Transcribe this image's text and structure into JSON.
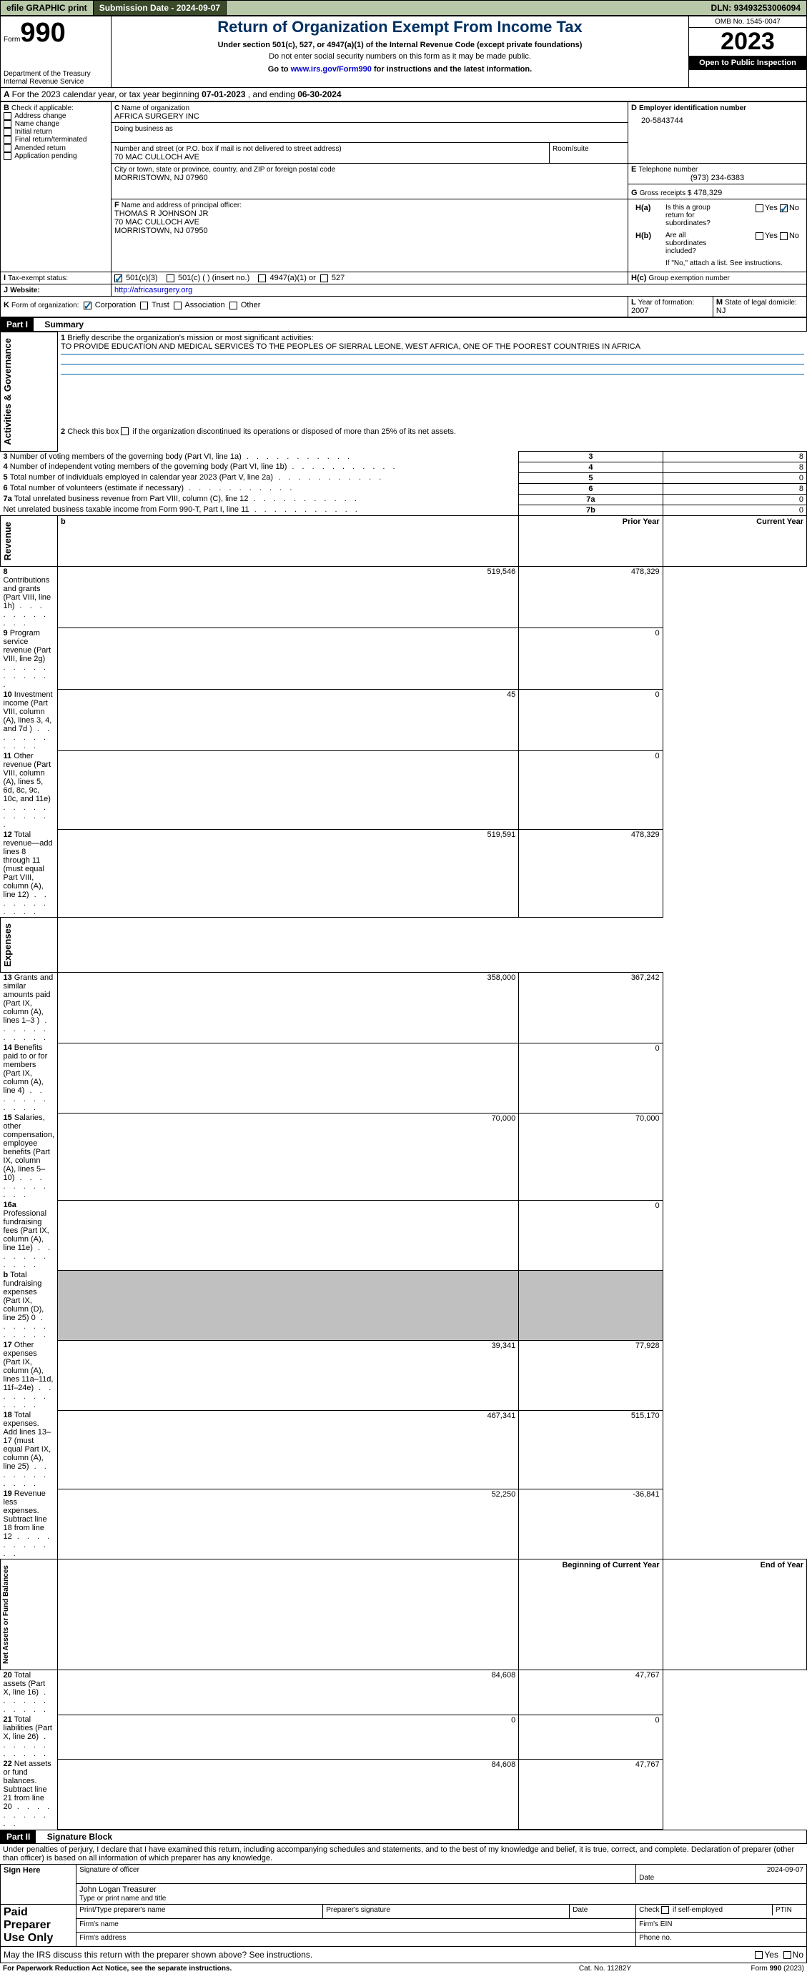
{
  "topbar": {
    "efile": "efile GRAPHIC print",
    "subdate_label": "Submission Date -",
    "subdate": "2024-09-07",
    "dln_label": "DLN:",
    "dln": "93493253006094"
  },
  "header": {
    "form_label": "Form",
    "form_no": "990",
    "title": "Return of Organization Exempt From Income Tax",
    "subtitle": "Under section 501(c), 527, or 4947(a)(1) of the Internal Revenue Code (except private foundations)",
    "ssn_note": "Do not enter social security numbers on this form as it may be made public.",
    "goto_prefix": "Go to ",
    "goto_url": "www.irs.gov/Form990",
    "goto_suffix": " for instructions and the latest information.",
    "dept": "Department of the Treasury",
    "irs": "Internal Revenue Service",
    "omb_label": "OMB No.",
    "omb": "1545-0047",
    "year": "2023",
    "open": "Open to Public Inspection"
  },
  "A": {
    "text_prefix": "For the 2023 calendar year, or tax year beginning ",
    "begin": "07-01-2023",
    "mid": ", and ending ",
    "end": "06-30-2024"
  },
  "B": {
    "label": "Check if applicable:",
    "opts": [
      "Address change",
      "Name change",
      "Initial return",
      "Final return/terminated",
      "Amended return",
      "Application pending"
    ]
  },
  "C": {
    "name_label": "Name of organization",
    "name": "AFRICA SURGERY INC",
    "dba_label": "Doing business as",
    "street_label": "Number and street (or P.O. box if mail is not delivered to street address)",
    "room_label": "Room/suite",
    "street": "70 MAC CULLOCH AVE",
    "city_label": "City or town, state or province, country, and ZIP or foreign postal code",
    "city": "MORRISTOWN, NJ  07960"
  },
  "D": {
    "label": "Employer identification number",
    "val": "20-5843744"
  },
  "E": {
    "label": "Telephone number",
    "val": "(973) 234-6383"
  },
  "G": {
    "label": "Gross receipts $",
    "val": "478,329"
  },
  "F": {
    "label": "Name and address of principal officer:",
    "name": "THOMAS R JOHNSON JR",
    "street": "70 MAC CULLOCH AVE",
    "city": "MORRISTOWN, NJ  07950"
  },
  "H": {
    "a": "Is this a group return for subordinates?",
    "b": "Are all subordinates included?",
    "bnote": "If \"No,\" attach a list. See instructions.",
    "c": "Group exemption number",
    "yes": "Yes",
    "no": "No"
  },
  "I": {
    "label": "Tax-exempt status:",
    "o501c3": "501(c)(3)",
    "o501c": "501(c) (  ) (insert no.)",
    "o4947": "4947(a)(1) or",
    "o527": "527"
  },
  "J": {
    "label": "Website:",
    "val": "http://africasurgery.org"
  },
  "K": {
    "label": "Form of organization:",
    "corp": "Corporation",
    "trust": "Trust",
    "assoc": "Association",
    "other": "Other"
  },
  "L": {
    "label": "Year of formation:",
    "val": "2007"
  },
  "M": {
    "label": "State of legal domicile:",
    "val": "NJ"
  },
  "part1": {
    "title": "Part I",
    "subtitle": "Summary",
    "l1_label": "Briefly describe the organization's mission or most significant activities:",
    "l1_val": "TO PROVIDE EDUCATION AND MEDICAL SERVICES TO THE PEOPLES OF SIERRAL LEONE, WEST AFRICA, ONE OF THE POOREST COUNTRIES IN AFRICA",
    "l2": "Check this box       if the organization discontinued its operations or disposed of more than 25% of its net assets.",
    "rows_gov": [
      {
        "n": "3",
        "t": "Number of voting members of the governing body (Part VI, line 1a)",
        "k": "3",
        "v": "8"
      },
      {
        "n": "4",
        "t": "Number of independent voting members of the governing body (Part VI, line 1b)",
        "k": "4",
        "v": "8"
      },
      {
        "n": "5",
        "t": "Total number of individuals employed in calendar year 2023 (Part V, line 2a)",
        "k": "5",
        "v": "0"
      },
      {
        "n": "6",
        "t": "Total number of volunteers (estimate if necessary)",
        "k": "6",
        "v": "8"
      },
      {
        "n": "7a",
        "t": "Total unrelated business revenue from Part VIII, column (C), line 12",
        "k": "7a",
        "v": "0"
      },
      {
        "n": "",
        "t": "Net unrelated business taxable income from Form 990-T, Part I, line 11",
        "k": "7b",
        "v": "0"
      }
    ],
    "col_prior": "Prior Year",
    "col_current": "Current Year",
    "rows_rev": [
      {
        "n": "8",
        "t": "Contributions and grants (Part VIII, line 1h)",
        "p": "519,546",
        "c": "478,329"
      },
      {
        "n": "9",
        "t": "Program service revenue (Part VIII, line 2g)",
        "p": "",
        "c": "0"
      },
      {
        "n": "10",
        "t": "Investment income (Part VIII, column (A), lines 3, 4, and 7d )",
        "p": "45",
        "c": "0"
      },
      {
        "n": "11",
        "t": "Other revenue (Part VIII, column (A), lines 5, 6d, 8c, 9c, 10c, and 11e)",
        "p": "",
        "c": "0"
      },
      {
        "n": "12",
        "t": "Total revenue—add lines 8 through 11 (must equal Part VIII, column (A), line 12)",
        "p": "519,591",
        "c": "478,329"
      }
    ],
    "rows_exp": [
      {
        "n": "13",
        "t": "Grants and similar amounts paid (Part IX, column (A), lines 1–3 )",
        "p": "358,000",
        "c": "367,242"
      },
      {
        "n": "14",
        "t": "Benefits paid to or for members (Part IX, column (A), line 4)",
        "p": "",
        "c": "0"
      },
      {
        "n": "15",
        "t": "Salaries, other compensation, employee benefits (Part IX, column (A), lines 5–10)",
        "p": "70,000",
        "c": "70,000"
      },
      {
        "n": "16a",
        "t": "Professional fundraising fees (Part IX, column (A), line 11e)",
        "p": "",
        "c": "0"
      },
      {
        "n": "b",
        "t": "Total fundraising expenses (Part IX, column (D), line 25) 0",
        "p": "SHADE",
        "c": "SHADE"
      },
      {
        "n": "17",
        "t": "Other expenses (Part IX, column (A), lines 11a–11d, 11f–24e)",
        "p": "39,341",
        "c": "77,928"
      },
      {
        "n": "18",
        "t": "Total expenses. Add lines 13–17 (must equal Part IX, column (A), line 25)",
        "p": "467,341",
        "c": "515,170"
      },
      {
        "n": "19",
        "t": "Revenue less expenses. Subtract line 18 from line 12",
        "p": "52,250",
        "c": "-36,841"
      }
    ],
    "col_begin": "Beginning of Current Year",
    "col_end": "End of Year",
    "rows_net": [
      {
        "n": "20",
        "t": "Total assets (Part X, line 16)",
        "p": "84,608",
        "c": "47,767"
      },
      {
        "n": "21",
        "t": "Total liabilities (Part X, line 26)",
        "p": "0",
        "c": "0"
      },
      {
        "n": "22",
        "t": "Net assets or fund balances. Subtract line 21 from line 20",
        "p": "84,608",
        "c": "47,767"
      }
    ],
    "vlabels": {
      "gov": "Activities & Governance",
      "rev": "Revenue",
      "exp": "Expenses",
      "net": "Net Assets or Fund Balances"
    }
  },
  "part2": {
    "title": "Part II",
    "subtitle": "Signature Block",
    "perjury": "Under penalties of perjury, I declare that I have examined this return, including accompanying schedules and statements, and to the best of my knowledge and belief, it is true, correct, and complete. Declaration of preparer (other than officer) is based on all information of which preparer has any knowledge.",
    "sign_here": "Sign Here",
    "sig_officer": "Signature of officer",
    "date": "Date",
    "sig_date": "2024-09-07",
    "officer_name": "John Logan  Treasurer",
    "type_name": "Type or print name and title",
    "paid": "Paid Preparer Use Only",
    "prep_name": "Print/Type preparer's name",
    "prep_sig": "Preparer's signature",
    "check_self": "Check        if self-employed",
    "ptin": "PTIN",
    "firm_name": "Firm's name",
    "firm_ein": "Firm's EIN",
    "firm_addr": "Firm's address",
    "phone": "Phone no.",
    "discuss": "May the IRS discuss this return with the preparer shown above? See instructions."
  },
  "footer": {
    "pra": "For Paperwork Reduction Act Notice, see the separate instructions.",
    "cat": "Cat. No. 11282Y",
    "form": "Form 990 (2023)"
  }
}
